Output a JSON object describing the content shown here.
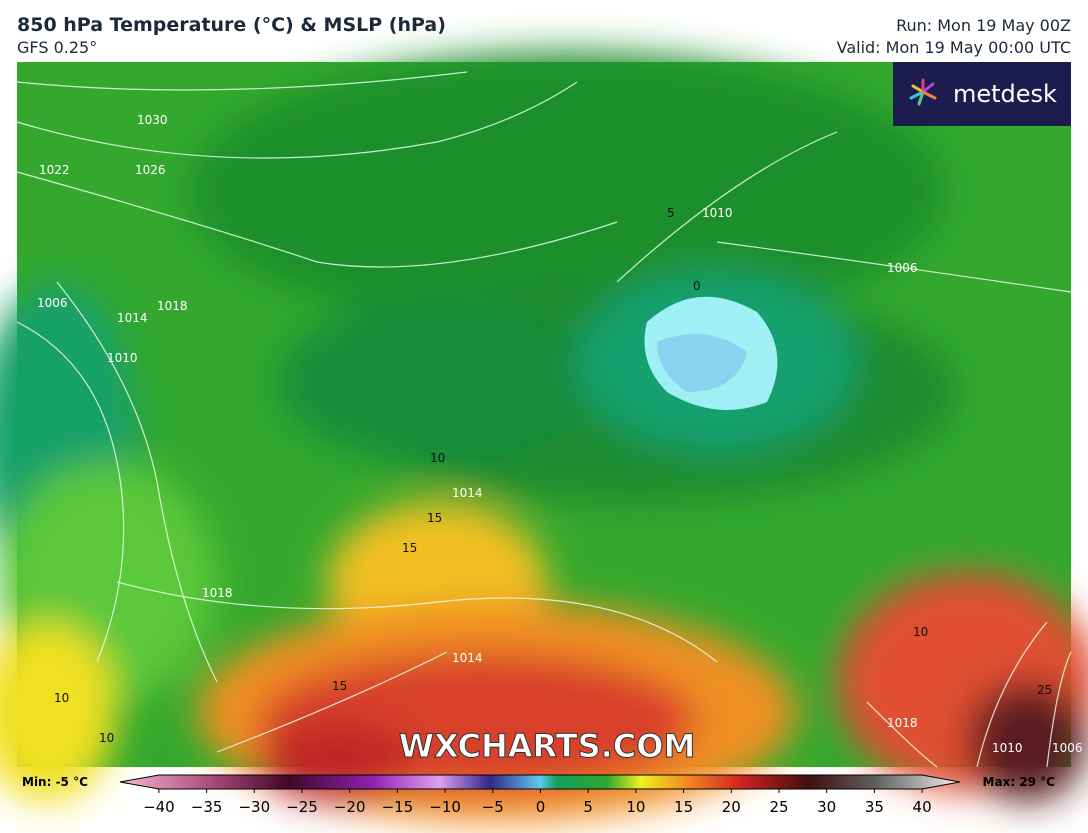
{
  "header": {
    "title": "850 hPa Temperature (°C) & MSLP (hPa)",
    "model": "GFS 0.25°",
    "run": "Run: Mon 19 May 00Z",
    "valid": "Valid: Mon 19 May 00:00 UTC"
  },
  "logo": "metdesk",
  "watermark": "WXCHARTS.COM",
  "colorbar": {
    "min_label": "Min: -5 °C",
    "max_label": "Max: 29 °C",
    "ticks": [
      {
        "value": -40,
        "label": "−40"
      },
      {
        "value": -35,
        "label": "−35"
      },
      {
        "value": -30,
        "label": "−30"
      },
      {
        "value": -25,
        "label": "−25"
      },
      {
        "value": -20,
        "label": "−20"
      },
      {
        "value": -15,
        "label": "−15"
      },
      {
        "value": -10,
        "label": "−10"
      },
      {
        "value": -5,
        "label": "−5"
      },
      0,
      5,
      10,
      15,
      20,
      25,
      30,
      35,
      40
    ]
  },
  "map_labels": [
    "1030",
    "1026",
    "1022",
    "1018",
    "1014",
    "1010",
    "1006",
    "1010",
    "1006",
    "1018",
    "1014",
    "1014",
    "1018",
    "1010",
    "1006",
    "10",
    "15",
    "15",
    "5",
    "0",
    "10",
    "25",
    "10",
    "10",
    "15"
  ]
}
